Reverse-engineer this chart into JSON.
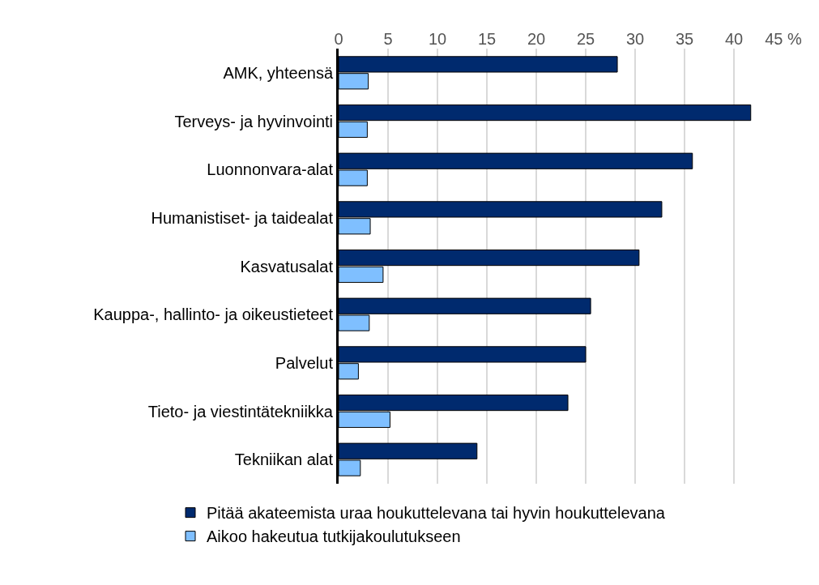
{
  "chart_data": {
    "type": "bar",
    "orientation": "horizontal",
    "categories": [
      "AMK, yhteensä",
      "Terveys- ja hyvinvointi",
      "Luonnonvara-alat",
      "Humanistiset- ja taidealat",
      "Kasvatusalat",
      "Kauppa-, hallinto- ja oikeustieteet",
      "Palvelut",
      "Tieto- ja viestintätekniikka",
      "Tekniikan alat"
    ],
    "series": [
      {
        "name": "Pitää akateemista uraa houkuttelevana tai hyvin houkuttelevana",
        "color": "#002a6e",
        "values": [
          28.2,
          41.7,
          35.8,
          32.7,
          30.4,
          25.5,
          25.0,
          23.2,
          14.0
        ]
      },
      {
        "name": "Aikoo hakeutua tutkijakoulutukseen",
        "color": "#7fbfff",
        "values": [
          3.0,
          2.9,
          2.9,
          3.2,
          4.5,
          3.1,
          2.0,
          5.2,
          2.2
        ]
      }
    ],
    "xlim": [
      0,
      45
    ],
    "xticks": [
      0,
      5,
      10,
      15,
      20,
      25,
      30,
      35,
      40,
      {
        "value": 45,
        "label": "45 %"
      }
    ],
    "grid": "x",
    "legend": "bottom"
  }
}
